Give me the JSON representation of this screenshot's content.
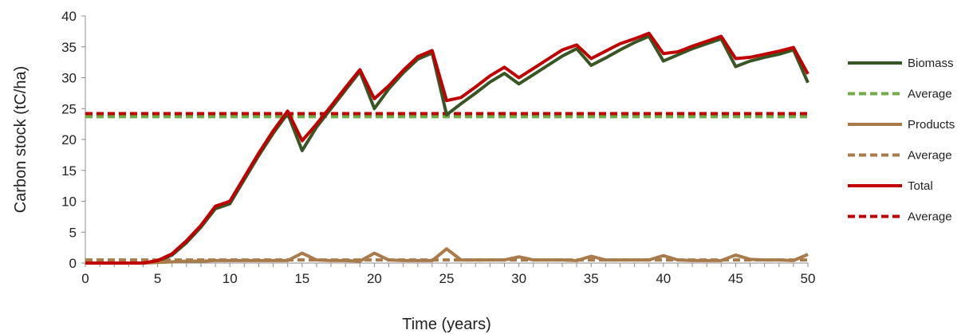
{
  "chart_data": {
    "type": "line",
    "xlabel": "Time (years)",
    "ylabel": "Carbon stock (tC/ha)",
    "xlim": [
      0,
      50
    ],
    "ylim": [
      0,
      40
    ],
    "x_ticks": [
      0,
      5,
      10,
      15,
      20,
      25,
      30,
      35,
      40,
      45,
      50
    ],
    "y_ticks": [
      0,
      5,
      10,
      15,
      20,
      25,
      30,
      35,
      40
    ],
    "grid": false,
    "legend_position": "right",
    "x": [
      0,
      1,
      2,
      3,
      4,
      5,
      6,
      7,
      8,
      9,
      10,
      11,
      12,
      13,
      14,
      15,
      16,
      17,
      18,
      19,
      20,
      21,
      22,
      23,
      24,
      25,
      26,
      27,
      28,
      29,
      30,
      31,
      32,
      33,
      34,
      35,
      36,
      37,
      38,
      39,
      40,
      41,
      42,
      43,
      44,
      45,
      46,
      47,
      48,
      49,
      50
    ],
    "series": [
      {
        "name": "Biomass",
        "style": "solid",
        "color": "#375623",
        "values": [
          0,
          0,
          0,
          0,
          0,
          0.3,
          1.3,
          3.3,
          5.8,
          8.8,
          9.6,
          13.5,
          17.4,
          21.0,
          24.2,
          18.2,
          22.0,
          25.0,
          28.0,
          31.0,
          25.0,
          28.2,
          30.8,
          33.0,
          34.0,
          24.0,
          25.8,
          27.5,
          29.3,
          30.7,
          29.0,
          30.5,
          32.0,
          33.5,
          34.7,
          32.0,
          33.2,
          34.5,
          35.7,
          36.7,
          32.7,
          33.7,
          34.7,
          35.5,
          36.3,
          31.8,
          32.7,
          33.3,
          33.8,
          34.5,
          29.2
        ]
      },
      {
        "name": "Average",
        "style": "dashed",
        "color": "#70AD47",
        "values": [
          23.7,
          23.7,
          23.7,
          23.7,
          23.7,
          23.7,
          23.7,
          23.7,
          23.7,
          23.7,
          23.7,
          23.7,
          23.7,
          23.7,
          23.7,
          23.7,
          23.7,
          23.7,
          23.7,
          23.7,
          23.7,
          23.7,
          23.7,
          23.7,
          23.7,
          23.7,
          23.7,
          23.7,
          23.7,
          23.7,
          23.7,
          23.7,
          23.7,
          23.7,
          23.7,
          23.7,
          23.7,
          23.7,
          23.7,
          23.7,
          23.7,
          23.7,
          23.7,
          23.7,
          23.7,
          23.7,
          23.7,
          23.7,
          23.7,
          23.7,
          23.7
        ]
      },
      {
        "name": "Products",
        "style": "solid",
        "color": "#A97A4A",
        "values": [
          0,
          0,
          0,
          0,
          0,
          0.1,
          0.2,
          0.3,
          0.3,
          0.4,
          0.4,
          0.4,
          0.4,
          0.4,
          0.4,
          1.6,
          0.5,
          0.4,
          0.4,
          0.3,
          1.6,
          0.5,
          0.4,
          0.4,
          0.4,
          2.3,
          0.5,
          0.5,
          0.5,
          0.5,
          1.0,
          0.5,
          0.5,
          0.5,
          0.4,
          1.1,
          0.5,
          0.5,
          0.5,
          0.5,
          1.2,
          0.5,
          0.4,
          0.4,
          0.4,
          1.3,
          0.6,
          0.5,
          0.5,
          0.4,
          1.4
        ]
      },
      {
        "name": "Average",
        "style": "dashed",
        "color": "#A97A4A",
        "values": [
          0.5,
          0.5,
          0.5,
          0.5,
          0.5,
          0.5,
          0.5,
          0.5,
          0.5,
          0.5,
          0.5,
          0.5,
          0.5,
          0.5,
          0.5,
          0.5,
          0.5,
          0.5,
          0.5,
          0.5,
          0.5,
          0.5,
          0.5,
          0.5,
          0.5,
          0.5,
          0.5,
          0.5,
          0.5,
          0.5,
          0.5,
          0.5,
          0.5,
          0.5,
          0.5,
          0.5,
          0.5,
          0.5,
          0.5,
          0.5,
          0.5,
          0.5,
          0.5,
          0.5,
          0.5,
          0.5,
          0.5,
          0.5,
          0.5,
          0.5,
          0.5
        ]
      },
      {
        "name": "Total",
        "style": "solid",
        "color": "#C00000",
        "values": [
          0,
          0,
          0,
          0,
          0,
          0.4,
          1.5,
          3.6,
          6.1,
          9.2,
          10.0,
          13.9,
          17.8,
          21.4,
          24.6,
          19.8,
          22.5,
          25.4,
          28.4,
          31.3,
          26.6,
          28.7,
          31.2,
          33.4,
          34.4,
          26.3,
          26.8,
          28.5,
          30.3,
          31.7,
          30.0,
          31.5,
          33.0,
          34.5,
          35.3,
          33.1,
          34.3,
          35.5,
          36.3,
          37.2,
          33.9,
          34.2,
          35.1,
          35.9,
          36.7,
          33.1,
          33.3,
          33.8,
          34.3,
          34.9,
          30.6
        ]
      },
      {
        "name": "Average",
        "style": "dashed",
        "color": "#C00000",
        "values": [
          24.2,
          24.2,
          24.2,
          24.2,
          24.2,
          24.2,
          24.2,
          24.2,
          24.2,
          24.2,
          24.2,
          24.2,
          24.2,
          24.2,
          24.2,
          24.2,
          24.2,
          24.2,
          24.2,
          24.2,
          24.2,
          24.2,
          24.2,
          24.2,
          24.2,
          24.2,
          24.2,
          24.2,
          24.2,
          24.2,
          24.2,
          24.2,
          24.2,
          24.2,
          24.2,
          24.2,
          24.2,
          24.2,
          24.2,
          24.2,
          24.2,
          24.2,
          24.2,
          24.2,
          24.2,
          24.2,
          24.2,
          24.2,
          24.2,
          24.2,
          24.2
        ]
      }
    ]
  }
}
